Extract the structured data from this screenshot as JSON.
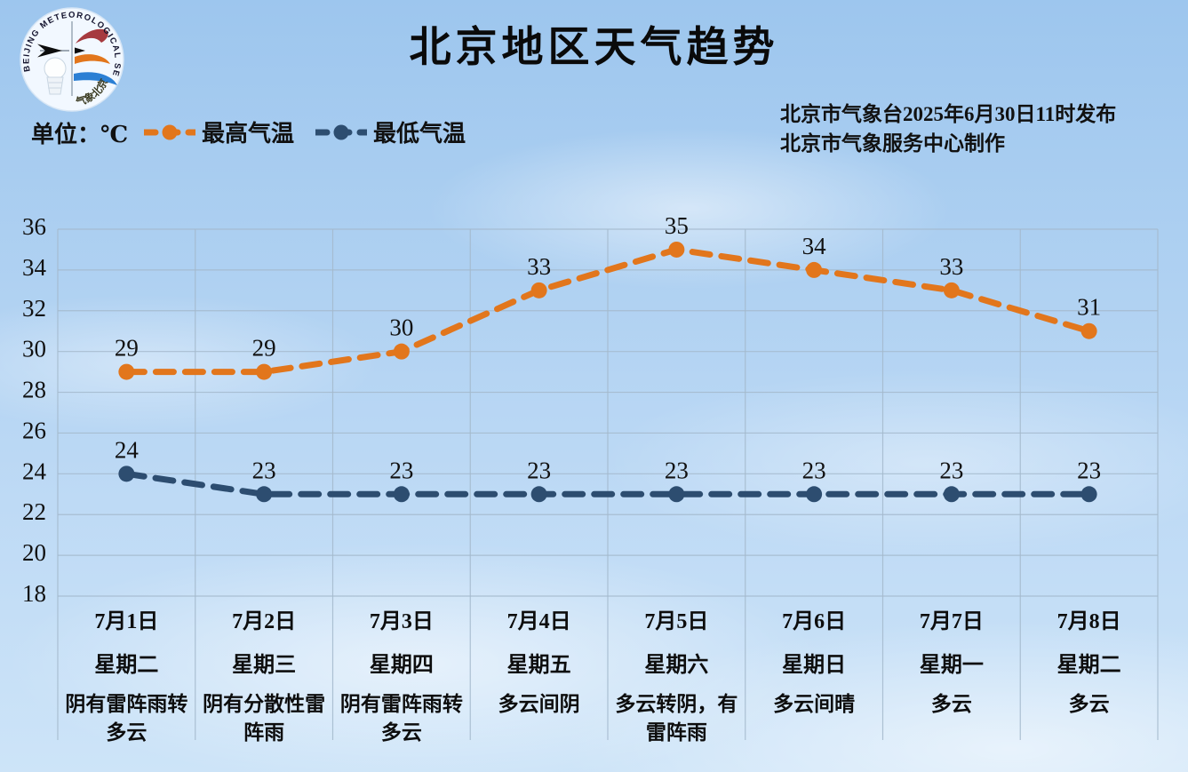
{
  "logo": {
    "arc_text": "BEIJING METEOROLOGICAL SERVICE",
    "bottom_text": "气象北京"
  },
  "header": {
    "title": "北京地区天气趋势",
    "unit_label": "单位：℃",
    "publish_line1": "北京市气象台2025年6月30日11时发布",
    "publish_line2": "北京市气象服务中心制作"
  },
  "legend": [
    {
      "label": "最高气温",
      "color": "#e2761c"
    },
    {
      "label": "最低气温",
      "color": "#2d4d70"
    }
  ],
  "colors": {
    "max_temp": "#e2761c",
    "min_temp": "#2d4d70",
    "gridline": "#a4b9cc",
    "text": "#111111"
  },
  "chart_data": {
    "type": "line",
    "title": "北京地区天气趋势",
    "unit": "℃",
    "ylim": [
      18,
      36
    ],
    "ytick_step": 2,
    "grid": true,
    "legend_position": "top-left",
    "line_style": "dashed-with-dot-markers",
    "categories": [
      {
        "date": "7月1日",
        "weekday": "星期二",
        "weather": "阴有雷阵雨转多云"
      },
      {
        "date": "7月2日",
        "weekday": "星期三",
        "weather": "阴有分散性雷阵雨"
      },
      {
        "date": "7月3日",
        "weekday": "星期四",
        "weather": "阴有雷阵雨转多云"
      },
      {
        "date": "7月4日",
        "weekday": "星期五",
        "weather": "多云间阴"
      },
      {
        "date": "7月5日",
        "weekday": "星期六",
        "weather": "多云转阴，有雷阵雨"
      },
      {
        "date": "7月6日",
        "weekday": "星期日",
        "weather": "多云间晴"
      },
      {
        "date": "7月7日",
        "weekday": "星期一",
        "weather": "多云"
      },
      {
        "date": "7月8日",
        "weekday": "星期二",
        "weather": "多云"
      }
    ],
    "series": [
      {
        "key": "max-temp",
        "name": "最高气温",
        "color": "#e2761c",
        "values": [
          29,
          29,
          30,
          33,
          35,
          34,
          33,
          31
        ]
      },
      {
        "key": "min-temp",
        "name": "最低气温",
        "color": "#2d4d70",
        "values": [
          24,
          23,
          23,
          23,
          23,
          23,
          23,
          23
        ]
      }
    ]
  }
}
